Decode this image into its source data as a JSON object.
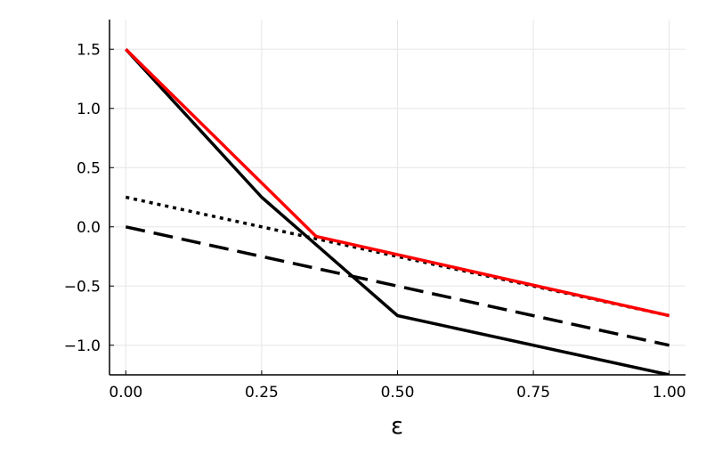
{
  "chart_data": {
    "type": "line",
    "title": "",
    "xlabel": "ε",
    "ylabel": "",
    "xlim": [
      -0.03,
      1.03
    ],
    "ylim": [
      -1.25,
      1.75
    ],
    "grid": true,
    "legend": "none",
    "x_ticks": [
      0.0,
      0.25,
      0.5,
      0.75,
      1.0
    ],
    "x_tick_labels": [
      "0.00",
      "0.25",
      "0.50",
      "0.75",
      "1.00"
    ],
    "y_ticks": [
      -1.0,
      -0.5,
      0.0,
      0.5,
      1.0,
      1.5
    ],
    "y_tick_labels": [
      "−1.0",
      "−0.5",
      "0.0",
      "0.5",
      "1.0",
      "1.5"
    ],
    "series": [
      {
        "style": "dashed",
        "color": "#000000",
        "points": [
          [
            0.0,
            0.0
          ],
          [
            1.0,
            -1.0
          ]
        ]
      },
      {
        "style": "dotted",
        "color": "#000000",
        "points": [
          [
            0.0,
            0.25
          ],
          [
            0.35,
            -0.1
          ],
          [
            1.0,
            -0.75
          ]
        ]
      },
      {
        "style": "solid",
        "color": "#000000",
        "points": [
          [
            0.0,
            1.5
          ],
          [
            0.25,
            0.25
          ],
          [
            0.5,
            -0.75
          ],
          [
            1.0,
            -1.25
          ]
        ]
      },
      {
        "style": "solid",
        "color": "#ff0000",
        "points": [
          [
            0.0,
            1.5
          ],
          [
            0.35,
            -0.08
          ],
          [
            1.0,
            -0.75
          ]
        ]
      }
    ]
  }
}
